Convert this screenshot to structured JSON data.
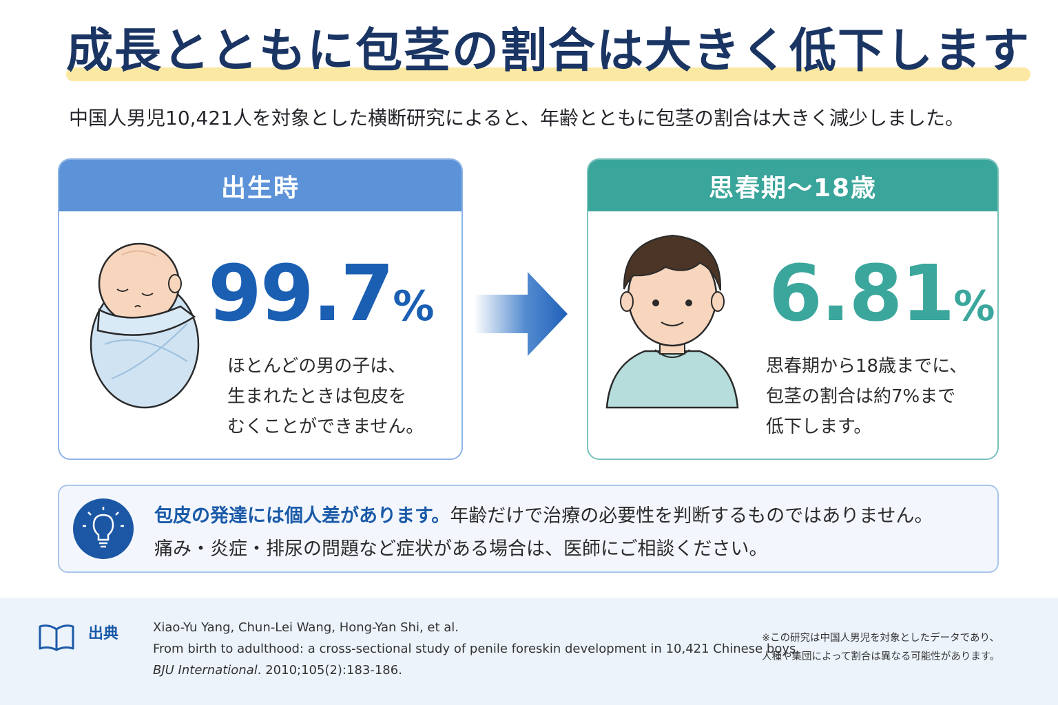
{
  "title": "成長とともに包茎の割合は大きく低下します",
  "subtitle": "中国人男児10,421人を対象とした横断研究によると、年齢とともに包茎の割合は大きく減少しました。",
  "cards": [
    {
      "header": "出生時",
      "value": "99.7",
      "unit": "%",
      "desc": [
        "ほとんどの男の子は、",
        "生まれたときは包皮を",
        "むくことができません。"
      ],
      "accent": "#1b5fb3",
      "header_color": "#5b92d8",
      "icon": "swaddled-baby-icon"
    },
    {
      "header": "思春期〜18歳",
      "value": "6.81",
      "unit": "%",
      "desc": [
        "思春期から18歳までに、",
        "包茎の割合は約7%まで",
        "低下します。"
      ],
      "accent": "#3ba69c",
      "header_color": "#3aa59b",
      "icon": "teen-boy-icon"
    }
  ],
  "note": {
    "strong": "包皮の発達には個人差があります。",
    "rest": "年齢だけで治療の必要性を判断するものではありません。",
    "line2": "痛み・炎症・排尿の問題など症状がある場合は、医師にご相談ください。",
    "icon": "lightbulb-icon"
  },
  "source": {
    "label": "出典",
    "authors": "Xiao-Yu Yang, Chun-Lei Wang, Hong-Yan Shi, et al.",
    "article": "From birth to adulthood: a cross-sectional study of penile foreskin development in 10,421 Chinese boys.",
    "journal": "BJU International",
    "details": ". 2010;105(2):183-186.",
    "icon": "book-icon"
  },
  "footnote": [
    "※この研究は中国人男児を対象としたデータであり、",
    "人種や集団によって割合は異なる可能性があります。"
  ]
}
